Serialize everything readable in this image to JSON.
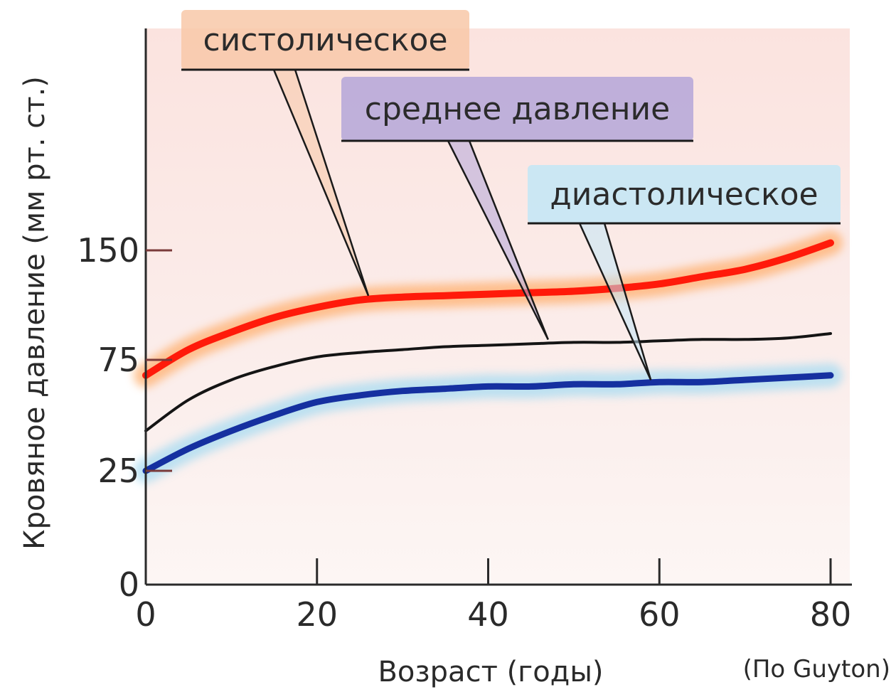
{
  "chart_data": {
    "type": "line",
    "title": "",
    "xlabel": "Возраст (годы)",
    "ylabel": "Кровяное давление (мм рт. ст.)",
    "source_note": "(По Guyton)",
    "x_ticks": [
      0,
      20,
      40,
      60,
      80
    ],
    "y_ticks": [
      0,
      25,
      75,
      150
    ],
    "xlim": [
      0,
      80
    ],
    "grid": false,
    "legend": "callouts",
    "x": [
      0,
      5,
      10,
      15,
      20,
      25,
      30,
      35,
      40,
      45,
      50,
      55,
      60,
      65,
      70,
      75,
      80
    ],
    "series": [
      {
        "name": "систолическое",
        "color": "#ff1a0a",
        "glow": "#ffb070",
        "line_width": 10,
        "values": [
          68,
          82,
          94,
          104,
          111,
          116,
          118,
          119,
          120,
          121,
          122,
          124,
          127,
          132,
          137,
          145,
          155
        ]
      },
      {
        "name": "среднее давление",
        "color": "#141414",
        "glow": null,
        "line_width": 4,
        "values": [
          43,
          57,
          66,
          72,
          77,
          80,
          82,
          84,
          85,
          86,
          87,
          87,
          88,
          89,
          89,
          90,
          93
        ]
      },
      {
        "name": "диастолическое",
        "color": "#1530a0",
        "glow": "#a8dcf2",
        "line_width": 9,
        "values": [
          25,
          35,
          43,
          50,
          56,
          59,
          61,
          62,
          63,
          63,
          64,
          64,
          65,
          65,
          66,
          67,
          68
        ]
      }
    ]
  },
  "colors": {
    "plot_background": "#fbecea",
    "axis": "#2a2a2a",
    "systolic_label_bg": "#f8c8a8",
    "mean_label_bg": "#b4a6d8",
    "diastolic_label_bg": "#c2e6f6"
  }
}
